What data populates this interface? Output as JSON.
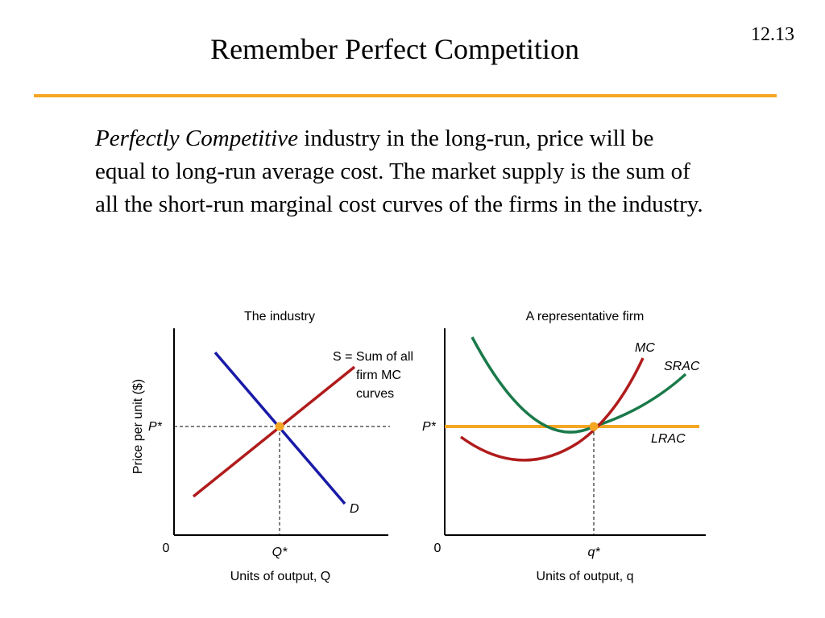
{
  "slide": {
    "title": "Remember Perfect Competition",
    "number": "12.13",
    "body_italic": "Perfectly Competitive",
    "body_rest": " industry in the long-run, price will be equal to long-run average cost.  The market supply is the sum of all the short-run marginal cost curves of the firms in the industry."
  },
  "colors": {
    "accent_rule": "#f5a623",
    "demand": "#1a1aa8",
    "supply_mc": "#b01c1c",
    "srac": "#1a7a4a",
    "lrac": "#f5a623",
    "equilibrium_dot": "#f5a623"
  },
  "industry": {
    "title": "The industry",
    "ylabel": "Price per unit ($)",
    "origin": "0",
    "p_label": "P*",
    "q_label": "Q*",
    "xlabel_text": "Units of output, ",
    "xlabel_var": "Q",
    "supply_S": "S",
    "supply_eq": " = Sum of all",
    "supply_line2_text": "firm ",
    "supply_line2_var": "MC",
    "supply_line3": "curves",
    "demand_label": "D"
  },
  "firm": {
    "title": "A representative firm",
    "origin": "0",
    "p_label": "P*",
    "q_label": "q*",
    "xlabel_text": "Units of output, ",
    "xlabel_var": "q",
    "mc_label": "MC",
    "srac_label": "SRAC",
    "lrac_label": "LRAC"
  }
}
